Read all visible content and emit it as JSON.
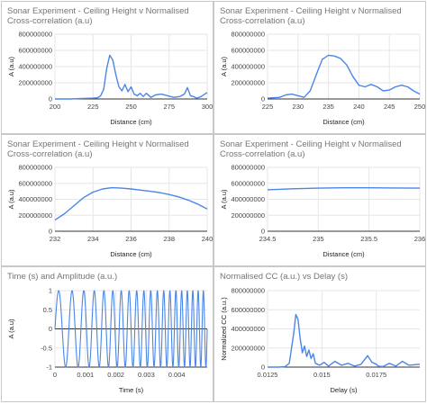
{
  "colors": {
    "series": "#4a86e8",
    "grid": "#e6e6e6",
    "axis": "#333333",
    "title": "#757575"
  },
  "chart_data": [
    {
      "type": "line",
      "title": "Sonar Experiment - Ceiling Height v Normalised Cross-correlation (a.u)",
      "xlabel": "Distance (cm)",
      "ylabel": "A (a.u)",
      "xlim": [
        200,
        300
      ],
      "ylim": [
        0,
        800000000
      ],
      "xticks": [
        200,
        225,
        250,
        275,
        300
      ],
      "xtick_labels": [
        "200",
        "225",
        "250",
        "275",
        "300"
      ],
      "yticks": [
        0,
        200000000,
        400000000,
        600000000,
        800000000
      ],
      "ytick_labels": [
        "0",
        "200000000",
        "400000000",
        "600000000",
        "800000000"
      ],
      "grid": true,
      "series": [
        {
          "x": [
            200,
            210,
            220,
            225,
            228,
            230,
            232,
            234,
            236,
            238,
            240,
            242,
            244,
            246,
            248,
            250,
            252,
            254,
            256,
            258,
            260,
            263,
            266,
            270,
            274,
            278,
            282,
            285,
            287,
            289,
            291,
            293,
            296,
            300
          ],
          "y": [
            0,
            0,
            8000000,
            10000000,
            15000000,
            40000000,
            120000000,
            380000000,
            540000000,
            480000000,
            300000000,
            150000000,
            100000000,
            180000000,
            90000000,
            150000000,
            60000000,
            40000000,
            70000000,
            30000000,
            70000000,
            20000000,
            50000000,
            60000000,
            40000000,
            20000000,
            30000000,
            60000000,
            140000000,
            40000000,
            30000000,
            10000000,
            30000000,
            80000000
          ]
        }
      ]
    },
    {
      "type": "line",
      "title": "Sonar Experiment - Ceiling Height v Normalised Cross-correlation (a.u)",
      "xlabel": "Distance (cm)",
      "ylabel": "A (a.u)",
      "xlim": [
        225,
        250
      ],
      "ylim": [
        0,
        800000000
      ],
      "xticks": [
        225,
        230,
        235,
        240,
        245,
        250
      ],
      "xtick_labels": [
        "225",
        "230",
        "235",
        "240",
        "245",
        "250"
      ],
      "yticks": [
        0,
        200000000,
        400000000,
        600000000,
        800000000
      ],
      "ytick_labels": [
        "0",
        "200000000",
        "400000000",
        "600000000",
        "800000000"
      ],
      "grid": true,
      "series": [
        {
          "x": [
            225,
            227,
            228,
            229,
            230,
            231,
            232,
            233,
            234,
            235,
            236,
            237,
            238,
            239,
            240,
            241,
            242,
            243,
            244,
            245,
            246,
            247,
            248,
            249,
            250
          ],
          "y": [
            10000000,
            20000000,
            50000000,
            60000000,
            40000000,
            20000000,
            100000000,
            300000000,
            490000000,
            540000000,
            530000000,
            500000000,
            420000000,
            280000000,
            170000000,
            150000000,
            180000000,
            150000000,
            100000000,
            110000000,
            150000000,
            170000000,
            150000000,
            100000000,
            60000000
          ]
        }
      ]
    },
    {
      "type": "line",
      "title": "Sonar Experiment - Ceiling Height v Normalised Cross-correlation (a.u)",
      "xlabel": "Distance (cm)",
      "ylabel": "A (a.u)",
      "xlim": [
        232,
        240
      ],
      "ylim": [
        0,
        800000000
      ],
      "xticks": [
        232,
        234,
        236,
        238,
        240
      ],
      "xtick_labels": [
        "232",
        "234",
        "236",
        "238",
        "240"
      ],
      "yticks": [
        0,
        200000000,
        400000000,
        600000000,
        800000000
      ],
      "ytick_labels": [
        "0",
        "200000000",
        "400000000",
        "600000000",
        "800000000"
      ],
      "grid": true,
      "series": [
        {
          "x": [
            232,
            232.5,
            233,
            233.5,
            234,
            234.5,
            235,
            235.5,
            236,
            236.5,
            237,
            237.5,
            238,
            238.5,
            239,
            239.5,
            240
          ],
          "y": [
            140000000,
            220000000,
            320000000,
            420000000,
            490000000,
            530000000,
            545000000,
            540000000,
            530000000,
            515000000,
            500000000,
            485000000,
            460000000,
            430000000,
            390000000,
            340000000,
            280000000
          ]
        }
      ]
    },
    {
      "type": "line",
      "title": "Sonar Experiment - Ceiling Height v Normalised Cross-correlation (a.u)",
      "xlabel": "Distance (cm)",
      "ylabel": "A (a.u)",
      "xlim": [
        234.5,
        236
      ],
      "ylim": [
        0,
        800000000
      ],
      "xticks": [
        234.5,
        235,
        235.5,
        236
      ],
      "xtick_labels": [
        "234.5",
        "235",
        "235.5",
        "236"
      ],
      "yticks": [
        0,
        200000000,
        400000000,
        600000000,
        800000000
      ],
      "ytick_labels": [
        "0",
        "200000000",
        "400000000",
        "600000000",
        "800000000"
      ],
      "grid": true,
      "series": [
        {
          "x": [
            234.5,
            234.75,
            235,
            235.25,
            235.5,
            235.75,
            236
          ],
          "y": [
            520000000,
            532000000,
            540000000,
            544000000,
            544000000,
            542000000,
            540000000
          ]
        }
      ]
    },
    {
      "type": "line",
      "title": "Time (s) and Amplitude (a.u.)",
      "xlabel": "Time (s)",
      "ylabel": "A (a.u)",
      "xlim": [
        0,
        0.005
      ],
      "ylim": [
        -1,
        1
      ],
      "xticks": [
        0,
        0.001,
        0.002,
        0.003,
        0.004
      ],
      "xtick_labels": [
        "0",
        "0.001",
        "0.002",
        "0.003",
        "0.004"
      ],
      "yticks": [
        -1,
        -0.5,
        0,
        0.5,
        1
      ],
      "ytick_labels": [
        "-1",
        "-0.5",
        "0",
        "0.5",
        "1"
      ],
      "grid": true,
      "signal": {
        "form": "linear chirp",
        "start_frequency_hz": 2000,
        "end_frequency_hz": 6000,
        "duration_s": 0.005,
        "amplitude": 1
      }
    },
    {
      "type": "line",
      "title": "Normalised CC (a.u.) vs Delay (s)",
      "xlabel": "Delay (s)",
      "ylabel": "Normalized CC (a.u.)",
      "xlim": [
        0.0125,
        0.0195
      ],
      "ylim": [
        0,
        800000000
      ],
      "xticks": [
        0.0125,
        0.015,
        0.0175
      ],
      "xtick_labels": [
        "0.0125",
        "0.015",
        "0.0175"
      ],
      "yticks": [
        0,
        200000000,
        400000000,
        600000000,
        800000000
      ],
      "ytick_labels": [
        "0",
        "200000000",
        "400000000",
        "600000000",
        "800000000"
      ],
      "grid": true,
      "series": [
        {
          "x": [
            0.0125,
            0.013,
            0.0133,
            0.0135,
            0.0137,
            0.0138,
            0.0139,
            0.014,
            0.0141,
            0.0142,
            0.0143,
            0.0144,
            0.0145,
            0.0146,
            0.0147,
            0.0149,
            0.0151,
            0.0153,
            0.0156,
            0.0159,
            0.0162,
            0.0165,
            0.0168,
            0.0171,
            0.0173,
            0.0175,
            0.0176,
            0.0178,
            0.0181,
            0.0184,
            0.0187,
            0.019,
            0.0195
          ],
          "y": [
            0,
            0,
            5000000,
            40000000,
            350000000,
            550000000,
            500000000,
            300000000,
            150000000,
            220000000,
            110000000,
            180000000,
            90000000,
            140000000,
            40000000,
            20000000,
            50000000,
            10000000,
            60000000,
            20000000,
            40000000,
            10000000,
            30000000,
            120000000,
            50000000,
            30000000,
            10000000,
            5000000,
            40000000,
            10000000,
            60000000,
            20000000,
            30000000
          ]
        }
      ]
    }
  ]
}
